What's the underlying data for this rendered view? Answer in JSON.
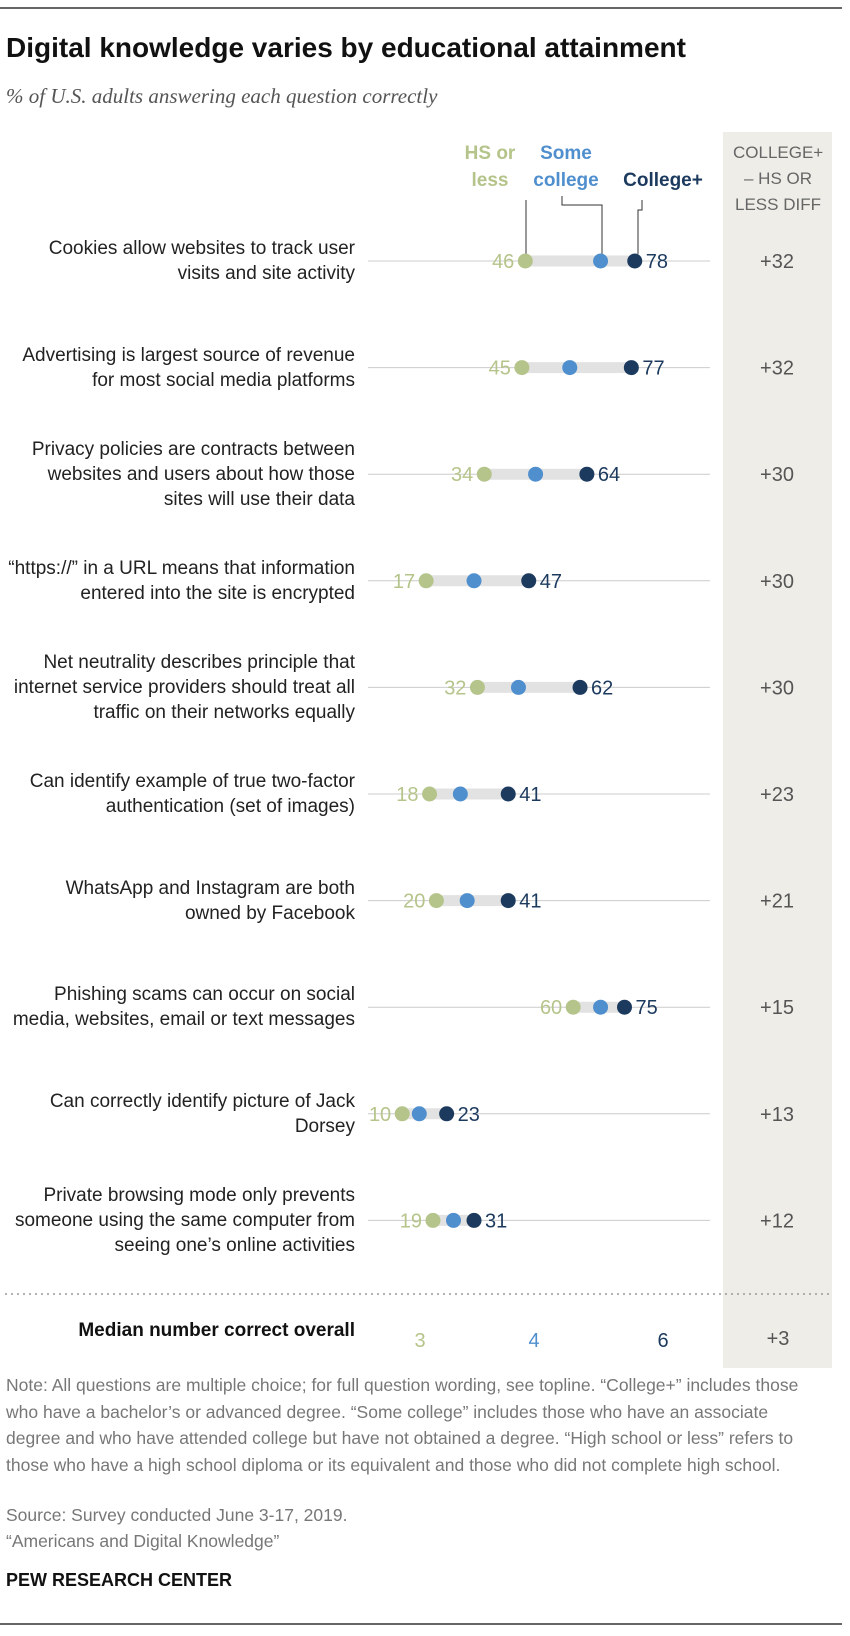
{
  "title": "Digital knowledge varies by educational attainment",
  "subtitle": "% of U.S. adults answering each question correctly",
  "chart_data": {
    "type": "dot",
    "categories": [
      "Cookies allow websites to track user visits and site activity",
      "Advertising is largest source of revenue for most social media platforms",
      "Privacy policies are contracts between websites and users about how those sites will use their data",
      "“https://” in a URL means that information entered into the site is encrypted",
      "Net neutrality describes principle that internet service providers should treat all traffic on their networks equally",
      "Can identify example of true two-factor authentication (set of images)",
      "WhatsApp and Instagram are both owned by Facebook",
      "Phishing scams can occur on social media, websites, email or text messages",
      "Can correctly identify picture of Jack Dorsey",
      "Private browsing mode only prevents someone using the same computer from seeing one’s online activities"
    ],
    "xlim": [
      0,
      100
    ],
    "series": [
      {
        "name": "HS or less",
        "color": "#b5c48a",
        "values": [
          46,
          45,
          34,
          17,
          32,
          18,
          20,
          60,
          10,
          19
        ]
      },
      {
        "name": "Some college",
        "color": "#4f8fce",
        "values": [
          68,
          59,
          49,
          31,
          44,
          27,
          29,
          68,
          15,
          25
        ]
      },
      {
        "name": "College+",
        "color": "#1c3a5e",
        "values": [
          78,
          77,
          64,
          47,
          62,
          41,
          41,
          75,
          23,
          31
        ]
      }
    ],
    "diff_header": "COLLEGE+ – HS OR LESS DIFF",
    "diff_labels": [
      "+32",
      "+32",
      "+30",
      "+30",
      "+30",
      "+23",
      "+21",
      "+15",
      "+13",
      "+12"
    ]
  },
  "median": {
    "label": "Median number correct overall",
    "values": [
      3,
      4,
      6
    ],
    "diff": "+3"
  },
  "note": "Note: All questions are multiple choice; for full question wording, see topline. “College+” includes those who have a bachelor’s or advanced degree. “Some college” includes those who have an associate degree and who have attended college but have not obtained a degree. “High school or less” refers to those who have a high school diploma or its equivalent and those who did not complete high school.",
  "source": "Source: Survey conducted June 3-17, 2019.",
  "report": "“Americans and Digital Knowledge”",
  "footer": "PEW RESEARCH CENTER"
}
